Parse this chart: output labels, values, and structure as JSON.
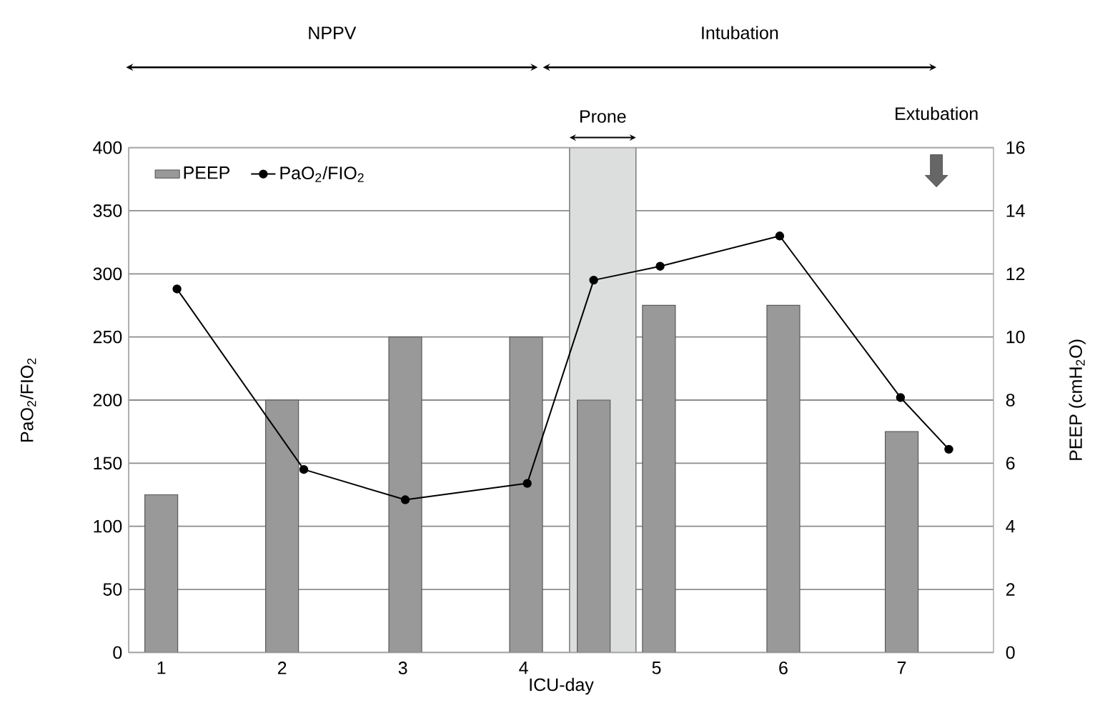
{
  "chart_data": {
    "type": "bar",
    "xlabel": "ICU-day",
    "ylabel": "PaO$_{2}$/FIO$_{2}$",
    "y2label": "PEEP (cmH$_{2}$O)",
    "xlim": [
      0.73,
      7.89
    ],
    "xticks": [
      1,
      2,
      3,
      4,
      {
        "value": 5.1,
        "label": "5"
      },
      {
        "value": 6.15,
        "label": "6"
      },
      {
        "value": 7.13,
        "label": "7"
      }
    ],
    "ylim": [
      0,
      400
    ],
    "yticks": [
      0,
      50,
      100,
      150,
      200,
      250,
      300,
      350,
      400
    ],
    "y2lim": [
      0,
      16
    ],
    "y2ticks": [
      0,
      2,
      4,
      6,
      8,
      10,
      12,
      14,
      16
    ],
    "series": [
      {
        "name": "PEEP",
        "axis": "y2",
        "color": "#999999",
        "x": [
          1,
          2,
          3.02,
          4.02,
          4.58,
          5.12,
          6.15,
          7.13
        ],
        "values": [
          5,
          8,
          10,
          10,
          8,
          11,
          11,
          7
        ]
      },
      {
        "name": "PaO$_{2}$/FIO$_{2}$",
        "type": "line",
        "color": "#000000",
        "x": [
          1.13,
          2.18,
          3.02,
          4.03,
          4.58,
          5.13,
          6.12,
          7.12,
          7.52
        ],
        "values": [
          288,
          145,
          121,
          134,
          295,
          306,
          330,
          202,
          161
        ]
      }
    ],
    "bands": [
      {
        "axis": "x",
        "from": 4.38,
        "to": 4.93,
        "label": "Prone",
        "color": "#dcdddd"
      }
    ],
    "annotations": [
      "NPPV",
      "Intubation",
      "Extubation"
    ],
    "grid": "y",
    "legend": "top left",
    "marker": "circle"
  }
}
